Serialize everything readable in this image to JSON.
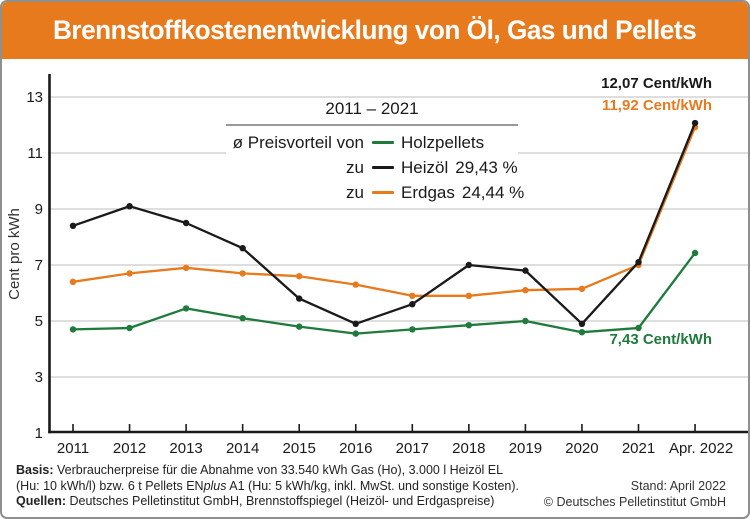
{
  "header": {
    "title": "Brennstoffkostenentwicklung von Öl, Gas und Pellets"
  },
  "legend": {
    "period": "2011 – 2021",
    "rows": [
      {
        "prefix": "ø Preisvorteil von",
        "label": "Holzpellets",
        "value": "",
        "color": "#1e7b3c"
      },
      {
        "prefix": "zu",
        "label": "Heizöl",
        "value": "29,43 %",
        "color": "#1a1a1a"
      },
      {
        "prefix": "zu",
        "label": "Erdgas",
        "value": "24,44 %",
        "color": "#e87a1e"
      }
    ]
  },
  "annotations": {
    "heizoel": "12,07 Cent/kWh",
    "erdgas": "11,92 Cent/kWh",
    "pellets": "7,43 Cent/kWh"
  },
  "chart_data": {
    "type": "line",
    "title": "Brennstoffkostenentwicklung von Öl, Gas und Pellets",
    "xlabel": "",
    "ylabel": "Cent pro kWh",
    "categories": [
      "2011",
      "2012",
      "2013",
      "2014",
      "2015",
      "2016",
      "2017",
      "2018",
      "2019",
      "2020",
      "2021",
      "Apr. 2022"
    ],
    "yticks": [
      1,
      3,
      5,
      7,
      9,
      11,
      13
    ],
    "ylim": [
      1,
      13.6
    ],
    "grid": "horizontal",
    "legend_position": "top-center",
    "series": [
      {
        "id": "erdgas",
        "name": "Erdgas",
        "color": "#e87a1e",
        "values": [
          6.4,
          6.7,
          6.9,
          6.7,
          6.6,
          6.3,
          5.9,
          5.9,
          6.1,
          6.15,
          7.0,
          11.92
        ]
      },
      {
        "id": "holzpellets",
        "name": "Holzpellets",
        "color": "#1e7b3c",
        "values": [
          4.7,
          4.75,
          5.45,
          5.1,
          4.8,
          4.55,
          4.7,
          4.85,
          5.0,
          4.6,
          4.75,
          7.43
        ]
      },
      {
        "id": "heizoel",
        "name": "Heizöl",
        "color": "#1a1a1a",
        "values": [
          8.4,
          9.1,
          8.5,
          7.6,
          5.8,
          4.9,
          5.6,
          7.0,
          6.8,
          4.9,
          7.1,
          12.07
        ]
      }
    ]
  },
  "footer": {
    "basis_label": "Basis:",
    "basis_line1": " Verbraucherpreise für die Abnahme von 33.540 kWh Gas (Ho), 3.000 l Heizöl EL",
    "basis_line2_a": "(Hu: 10 kWh/l) bzw. 6 t Pellets EN",
    "basis_line2_italic": "plus",
    "basis_line2_b": " A1 (Hu: 5 kWh/kg, inkl. MwSt. und sonstige Kosten).",
    "quellen_label": "Quellen:",
    "quellen_text": " Deutsches Pelletinstitut GmbH, Brennstoffspiegel (Heizöl- und Erdgaspreise)",
    "stand": "Stand: April 2022",
    "copyright": "© Deutsches Pelletinstitut GmbH"
  },
  "colors": {
    "accent_orange": "#e87a1e",
    "pellets_green": "#1e7b3c",
    "line_black": "#1a1a1a",
    "gridline_gray": "#cbcbcb"
  }
}
